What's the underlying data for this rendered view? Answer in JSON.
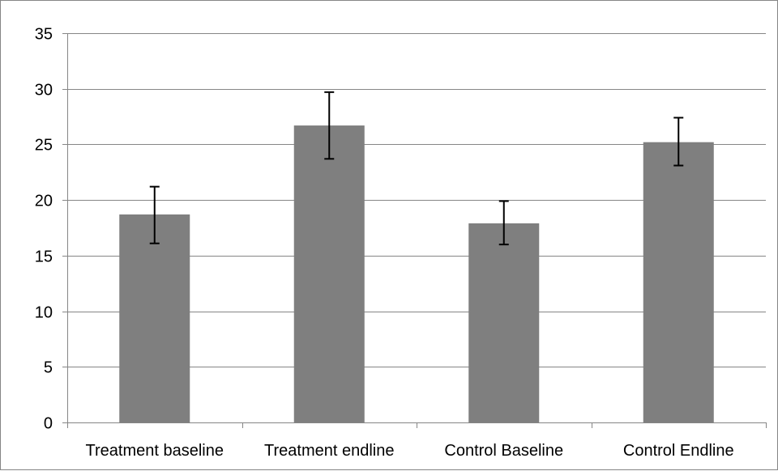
{
  "chart_data": {
    "type": "bar",
    "categories": [
      "Treatment baseline",
      "Treatment endline",
      "Control Baseline",
      "Control Endline"
    ],
    "values": [
      18.7,
      26.7,
      17.9,
      25.2
    ],
    "error_bars": [
      {
        "low": 16.1,
        "high": 21.2
      },
      {
        "low": 23.7,
        "high": 29.7
      },
      {
        "low": 16.0,
        "high": 19.9
      },
      {
        "low": 23.1,
        "high": 27.4
      }
    ],
    "ylim": [
      0,
      35
    ],
    "yticks": [
      0,
      5,
      10,
      15,
      20,
      25,
      30,
      35
    ],
    "title": "",
    "xlabel": "",
    "ylabel": "",
    "grid": true,
    "legend": "none",
    "colors": {
      "bar": "#7f7f7f",
      "grid": "#868686",
      "axis": "#868686",
      "error_bar": "#000000"
    }
  }
}
